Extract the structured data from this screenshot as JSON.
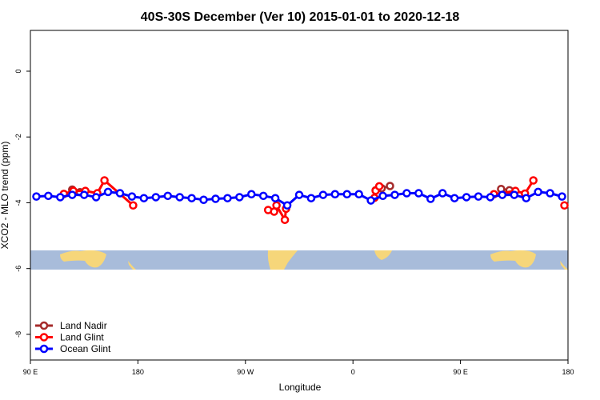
{
  "chart_data": {
    "type": "line",
    "title": "40S-30S December (Ver 10)   2015-01-01 to 2020-12-18",
    "x_label": "Longitude",
    "y_label": "XCO2 - MLO trend (ppm)",
    "xlim": [
      90,
      540
    ],
    "ylim": [
      -8.78,
      1.24
    ],
    "xticks": [
      {
        "value": 90,
        "label": "90 E"
      },
      180,
      {
        "value": 270,
        "label": "90 W"
      },
      {
        "value": 360,
        "label": "0"
      },
      {
        "value": 450,
        "label": "90 E"
      },
      {
        "value": 540,
        "label": "180"
      }
    ],
    "yticks": [
      0,
      -2,
      -4,
      -6,
      -8
    ],
    "legend": "bottom-left",
    "series": [
      {
        "name": "Land Nadir",
        "color": "#a52a2a",
        "x": [
          125,
          131.5,
          250,
          379,
          384,
          391,
          440,
          484,
          491
        ],
        "values": [
          -3.6,
          -3.68,
          null,
          -3.62,
          -3.56,
          -3.49,
          null,
          -3.58,
          -3.62
        ]
      },
      {
        "name": "Land Glint",
        "color": "#ff0000",
        "x": [
          118,
          126,
          136,
          146,
          152,
          176,
          230,
          289,
          294,
          296,
          303,
          304,
          340,
          378,
          379,
          382,
          430,
          478,
          496,
          504,
          511,
          525,
          537
        ],
        "values": [
          -3.73,
          -3.64,
          -3.64,
          -3.71,
          -3.32,
          -4.08,
          null,
          -4.22,
          -4.27,
          -4.08,
          -4.52,
          -4.18,
          null,
          -3.85,
          -3.63,
          -3.5,
          null,
          -3.74,
          -3.64,
          -3.72,
          -3.32,
          null,
          -4.08
        ]
      },
      {
        "name": "Ocean Glint",
        "color": "#0000ff",
        "x": [
          95,
          105,
          115,
          125,
          135,
          145,
          155,
          165,
          175,
          185,
          195,
          205,
          215,
          225,
          235,
          245,
          255,
          265,
          275,
          285,
          295,
          305,
          315,
          325,
          335,
          345,
          355,
          365,
          375,
          385,
          395,
          405,
          415,
          425,
          435,
          445,
          455,
          465,
          475,
          485,
          495,
          505,
          515,
          525,
          535
        ],
        "values": [
          -3.81,
          -3.79,
          -3.83,
          -3.76,
          -3.76,
          -3.83,
          -3.67,
          -3.71,
          -3.81,
          -3.86,
          -3.83,
          -3.79,
          -3.83,
          -3.86,
          -3.91,
          -3.88,
          -3.86,
          -3.83,
          -3.74,
          -3.79,
          -3.86,
          -4.08,
          -3.76,
          -3.86,
          -3.76,
          -3.74,
          -3.74,
          -3.74,
          -3.93,
          -3.79,
          -3.76,
          -3.71,
          -3.71,
          -3.88,
          -3.71,
          -3.86,
          -3.83,
          -3.81,
          -3.83,
          -3.76,
          -3.76,
          -3.86,
          -3.67,
          -3.71,
          -3.81
        ]
      }
    ]
  }
}
